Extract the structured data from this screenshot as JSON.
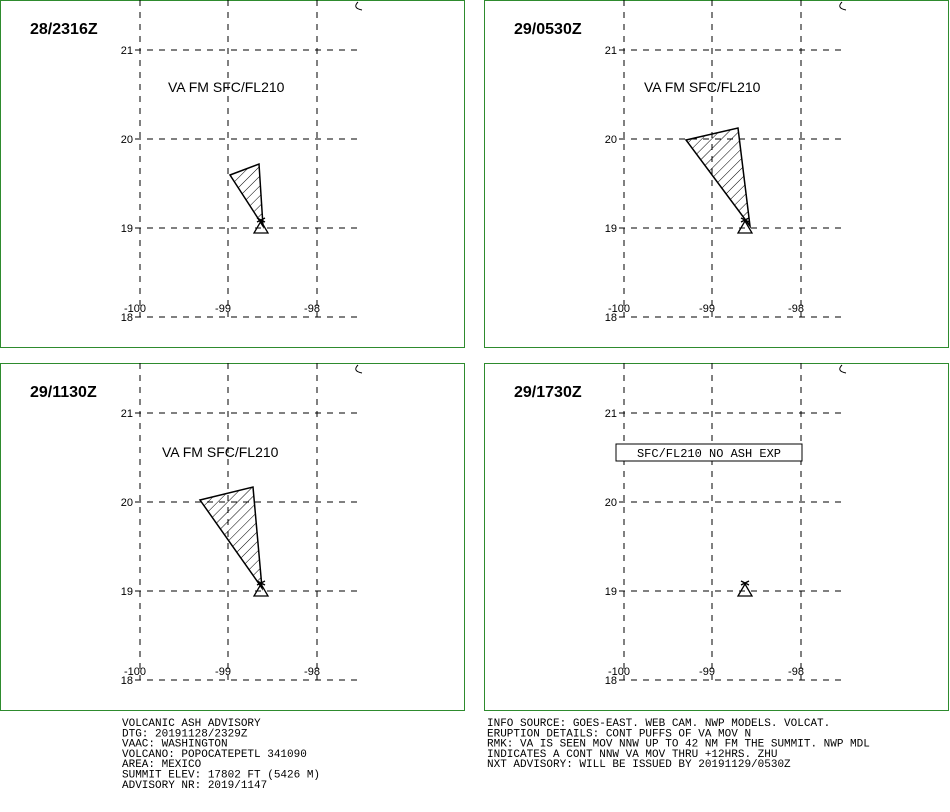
{
  "panels": [
    {
      "time": "28/2316Z",
      "annotation": "VA FM SFC/FL210"
    },
    {
      "time": "29/0530Z",
      "annotation": "VA FM SFC/FL210"
    },
    {
      "time": "29/1130Z",
      "annotation": "VA FM SFC/FL210"
    },
    {
      "time": "29/1730Z",
      "annotation": "SFC/FL210 NO ASH EXP"
    }
  ],
  "lat_labels": [
    "21",
    "20",
    "19",
    "18"
  ],
  "lon_labels": [
    "-100",
    "-99",
    "-98"
  ],
  "footer_left": [
    "VOLCANIC ASH ADVISORY",
    "DTG: 20191128/2329Z",
    "VAAC: WASHINGTON",
    "VOLCANO: POPOCATEPETL 341090",
    "AREA: MEXICO",
    "SUMMIT ELEV: 17802 FT (5426 M)",
    "ADVISORY NR: 2019/1147"
  ],
  "footer_right": [
    "INFO SOURCE: GOES-EAST. WEB CAM. NWP MODELS. VOLCAT.",
    "ERUPTION DETAILS: CONT PUFFS OF VA MOV N",
    "RMK: VA IS SEEN MOV NNW UP TO 42 NM FM THE SUMMIT. NWP MDL",
    "INDICATES A CONT NNW VA MOV THRU +12HRS.   ZHU",
    "NXT ADVISORY: WILL BE ISSUED BY 20191129/0530Z"
  ]
}
